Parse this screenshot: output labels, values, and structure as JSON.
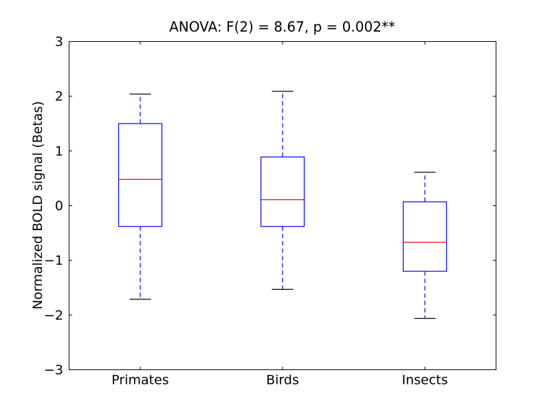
{
  "chart_data": {
    "type": "box",
    "title": "ANOVA: F(2) = 8.67, p = 0.002**",
    "ylabel": "Normalized BOLD signal (Betas)",
    "xlabel": "",
    "categories": [
      "Primates",
      "Birds",
      "Insects"
    ],
    "ylim": [
      -3,
      3
    ],
    "yticks": [
      -3,
      -2,
      -1,
      0,
      1,
      2,
      3
    ],
    "grid": false,
    "legend": null,
    "series": [
      {
        "name": "Primates",
        "whisker_low": -1.71,
        "q1": -0.38,
        "median": 0.48,
        "q3": 1.5,
        "whisker_high": 2.04
      },
      {
        "name": "Birds",
        "whisker_low": -1.53,
        "q1": -0.38,
        "median": 0.11,
        "q3": 0.89,
        "whisker_high": 2.09
      },
      {
        "name": "Insects",
        "whisker_low": -2.06,
        "q1": -1.2,
        "median": -0.67,
        "q3": 0.07,
        "whisker_high": 0.61
      }
    ],
    "colors": {
      "box": "#0000ff",
      "median": "#ff0000",
      "whisker": "#0000ff",
      "cap": "#000000",
      "axes": "#000000",
      "background": "#ffffff"
    }
  }
}
